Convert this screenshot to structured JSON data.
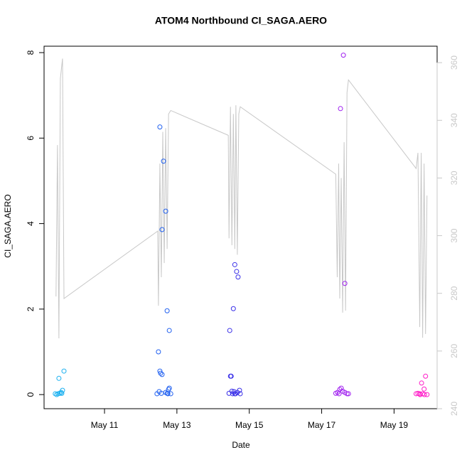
{
  "chart_data": {
    "type": "scatter",
    "title": "ATOM4 Northbound CI_SAGA.AERO",
    "xlabel": "Date",
    "ylabel": "CI_SAGA.AERO",
    "xlim": [
      9.33,
      20.19
    ],
    "ylim": [
      -0.33,
      8.15
    ],
    "y2lim": [
      240,
      365.7
    ],
    "xticks": [
      {
        "value": 11,
        "label": "May 11"
      },
      {
        "value": 13,
        "label": "May 13"
      },
      {
        "value": 15,
        "label": "May 15"
      },
      {
        "value": 17,
        "label": "May 17"
      },
      {
        "value": 19,
        "label": "May 19"
      }
    ],
    "yticks": [
      0,
      2,
      4,
      6,
      8
    ],
    "y2ticks": [
      240,
      260,
      280,
      300,
      320,
      340,
      360
    ],
    "y2color": "#c8c8c8",
    "series": [
      {
        "color": "#1ab0f0",
        "x": [
          9.64,
          9.68,
          9.72,
          9.74,
          9.76,
          9.8,
          9.82,
          9.84,
          9.88
        ],
        "values": [
          0.02,
          0.0,
          0.02,
          0.38,
          0.03,
          0.05,
          0.03,
          0.1,
          0.55
        ]
      },
      {
        "color": "#2060f0",
        "x": [
          12.45,
          12.49,
          12.51,
          12.53,
          12.53,
          12.55,
          12.57,
          12.59,
          12.59,
          12.63,
          12.69,
          12.69,
          12.73,
          12.73,
          12.75,
          12.77,
          12.79,
          12.79,
          12.83
        ],
        "values": [
          0.02,
          1.0,
          0.07,
          6.26,
          0.55,
          0.5,
          0.03,
          3.86,
          0.47,
          5.46,
          4.29,
          0.05,
          1.96,
          0.03,
          0.02,
          0.12,
          1.5,
          0.15,
          0.02
        ]
      },
      {
        "color": "#3a30e8",
        "x": [
          14.44,
          14.46,
          14.48,
          14.5,
          14.52,
          14.54,
          14.56,
          14.58,
          14.6,
          14.6,
          14.62,
          14.65,
          14.67,
          14.69,
          14.73,
          14.75
        ],
        "values": [
          0.03,
          1.5,
          0.43,
          0.43,
          0.08,
          0.02,
          2.01,
          0.07,
          3.04,
          0.02,
          0.02,
          2.88,
          0.05,
          2.75,
          0.1,
          0.02
        ]
      },
      {
        "color": "#a020f0",
        "x": [
          17.39,
          17.44,
          17.48,
          17.5,
          17.52,
          17.54,
          17.58,
          17.6,
          17.64,
          17.64,
          17.7,
          17.74
        ],
        "values": [
          0.03,
          0.05,
          0.02,
          0.12,
          6.69,
          0.15,
          0.08,
          7.94,
          2.6,
          0.05,
          0.02,
          0.02
        ]
      },
      {
        "color": "#ff1ac8",
        "x": [
          19.61,
          19.66,
          19.71,
          19.72,
          19.76,
          19.79,
          19.83,
          19.84,
          19.87,
          19.91
        ],
        "values": [
          0.02,
          0.03,
          0.02,
          0.0,
          0.27,
          0.02,
          0.13,
          0.0,
          0.43,
          0.0
        ]
      },
      {
        "type": "line",
        "axis": "y2",
        "color": "#c8c8c8",
        "x": [
          9.66,
          9.7,
          9.74,
          9.78,
          9.84,
          9.88,
          12.47,
          12.49,
          12.53,
          12.57,
          12.61,
          12.65,
          12.69,
          12.73,
          12.77,
          12.83,
          14.42,
          14.44,
          14.48,
          14.52,
          14.56,
          14.6,
          14.63,
          14.67,
          14.71,
          14.75,
          17.39,
          17.43,
          17.47,
          17.5,
          17.54,
          17.58,
          17.62,
          17.66,
          17.7,
          17.74,
          19.61,
          19.66,
          19.71,
          19.75,
          19.79,
          19.83,
          19.87,
          19.91
        ],
        "values": [
          278.9,
          331.4,
          264.4,
          354.5,
          361.4,
          278.2,
          301.6,
          275.7,
          325,
          285.6,
          336,
          290.5,
          337.3,
          295.4,
          342.2,
          343.4,
          334.8,
          299.1,
          344.7,
          296.7,
          342.2,
          295.4,
          345.2,
          293.4,
          342.2,
          344.7,
          321.3,
          285.6,
          325,
          278.2,
          320,
          273.3,
          332.4,
          274,
          349.6,
          354,
          323.3,
          328.7,
          268.3,
          328.7,
          264.6,
          325,
          265.9,
          313.9
        ]
      }
    ]
  }
}
